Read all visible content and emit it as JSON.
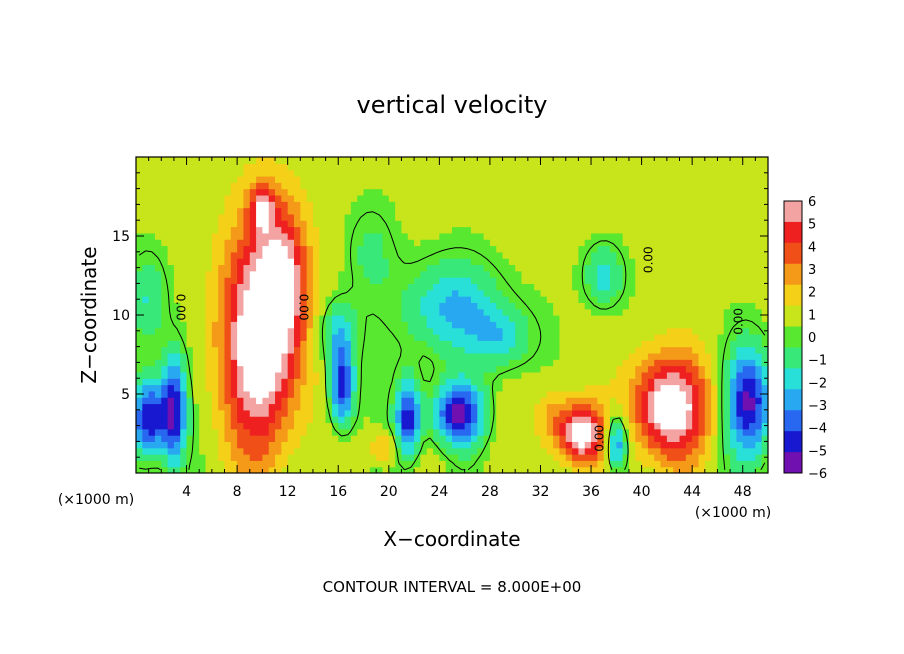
{
  "chart_data": {
    "type": "heatmap",
    "title": "vertical velocity",
    "xlabel": "X−coordinate",
    "ylabel": "Z−coordinate",
    "x_unit_left": "(×1000 m)",
    "x_unit_right": "(×1000 m)",
    "footer": "CONTOUR INTERVAL = 8.000E+00",
    "xlim": [
      0,
      50
    ],
    "ylim": [
      0,
      20
    ],
    "x_ticks": [
      "4",
      "8",
      "12",
      "16",
      "20",
      "24",
      "28",
      "32",
      "36",
      "40",
      "44",
      "48"
    ],
    "y_ticks": [
      "5",
      "10",
      "15"
    ],
    "x_tick_values": [
      4,
      8,
      12,
      16,
      20,
      24,
      28,
      32,
      36,
      40,
      44,
      48
    ],
    "y_tick_values": [
      5,
      10,
      15
    ],
    "colorbar": {
      "labels": [
        "6",
        "5",
        "4",
        "3",
        "2",
        "1",
        "0",
        "−1",
        "−2",
        "−3",
        "−4",
        "−5",
        "−6"
      ],
      "colors": [
        "#f4a3a3",
        "#ee2020",
        "#f05018",
        "#f59a18",
        "#f4d018",
        "#c8e41a",
        "#58e830",
        "#38e878",
        "#28e0d8",
        "#28a8f0",
        "#2868f0",
        "#1818d0",
        "#7010b0"
      ]
    },
    "contour_labels": [
      {
        "text": "0.00",
        "x": 3.5,
        "y": 10.5,
        "rotate": 90
      },
      {
        "text": "0.00",
        "x": 13.2,
        "y": 10.5,
        "rotate": 90
      },
      {
        "text": "0.00",
        "x": 40.6,
        "y": 13.5,
        "rotate": 270
      },
      {
        "text": "0.00",
        "x": 47.7,
        "y": 9.6,
        "rotate": 270
      },
      {
        "text": "0.00",
        "x": 36.7,
        "y": 2.2,
        "rotate": 270
      }
    ],
    "features": [
      {
        "x": 9.8,
        "y": 8.5,
        "sx": 3.0,
        "sy": 7.0,
        "v": 7.5
      },
      {
        "x": 11.8,
        "y": 12.5,
        "sx": 1.8,
        "sy": 4.5,
        "v": 4.0
      },
      {
        "x": 10.0,
        "y": 16.8,
        "sx": 1.0,
        "sy": 1.6,
        "v": 4.0
      },
      {
        "x": 42.2,
        "y": 4.2,
        "sx": 3.0,
        "sy": 3.2,
        "v": 7.0
      },
      {
        "x": 35.3,
        "y": 2.5,
        "sx": 1.8,
        "sy": 1.8,
        "v": 6.5
      },
      {
        "x": 19.5,
        "y": 1.6,
        "sx": 1.2,
        "sy": 1.0,
        "v": 2.0
      },
      {
        "x": 33.0,
        "y": 3.5,
        "sx": 1.5,
        "sy": 2.0,
        "v": 2.0
      },
      {
        "x": 25.5,
        "y": 3.8,
        "sx": 2.0,
        "sy": 2.0,
        "v": -6.5
      },
      {
        "x": 21.5,
        "y": 3.5,
        "sx": 1.0,
        "sy": 2.5,
        "v": -6.0
      },
      {
        "x": 16.3,
        "y": 5.5,
        "sx": 1.0,
        "sy": 2.5,
        "v": -6.0
      },
      {
        "x": 3.0,
        "y": 4.0,
        "sx": 1.0,
        "sy": 3.5,
        "v": -6.5
      },
      {
        "x": 1.0,
        "y": 3.5,
        "sx": 1.3,
        "sy": 2.5,
        "v": -6.5
      },
      {
        "x": 48.5,
        "y": 4.5,
        "sx": 1.8,
        "sy": 3.5,
        "v": -6.5
      },
      {
        "x": 38.0,
        "y": 2.0,
        "sx": 0.9,
        "sy": 1.8,
        "v": -5.0
      },
      {
        "x": 25.0,
        "y": 10.5,
        "sx": 4.0,
        "sy": 3.0,
        "v": -3.5
      },
      {
        "x": 37.0,
        "y": 12.5,
        "sx": 1.5,
        "sy": 2.0,
        "v": -3.0
      },
      {
        "x": 1.0,
        "y": 11.0,
        "sx": 1.5,
        "sy": 3.0,
        "v": -2.5
      },
      {
        "x": 16.0,
        "y": 9.0,
        "sx": 1.5,
        "sy": 2.0,
        "v": -3.0
      },
      {
        "x": 29.0,
        "y": 8.5,
        "sx": 2.5,
        "sy": 2.0,
        "v": -2.5
      },
      {
        "x": 18.5,
        "y": 14.0,
        "sx": 2.0,
        "sy": 3.0,
        "v": -1.5
      }
    ]
  }
}
